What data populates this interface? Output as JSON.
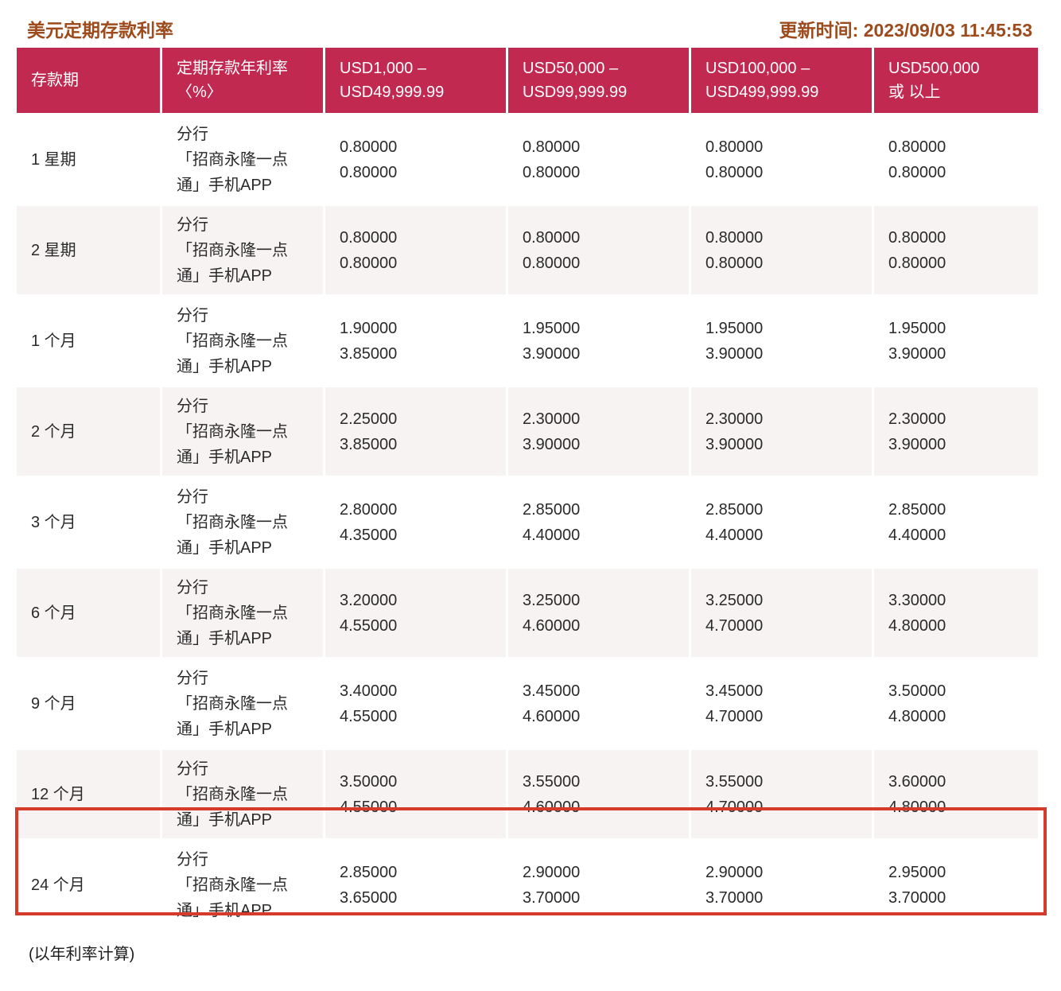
{
  "page": {
    "title": "美元定期存款利率",
    "updated": "更新时间: 2023/09/03 11:45:53",
    "footnote": "(以年利率计算)"
  },
  "colors": {
    "header_bg": "#c22950",
    "header_text": "#ffffff",
    "title_text": "#9d4a1c",
    "alt_row_bg": "#f7f3f2",
    "highlight_border": "#d53a2a"
  },
  "table": {
    "headers": [
      "存款期",
      "定期存款年利率\n〈%〉",
      "USD1,000 –\nUSD49,999.99",
      "USD50,000 –\nUSD99,999.99",
      "USD100,000 –\nUSD499,999.99",
      "USD500,000\n或 以上"
    ],
    "channel_label": "分行\n「招商永隆一点\n通」手机APP",
    "highlight_row_index": 7,
    "rows": [
      {
        "period": "1 星期",
        "rates": [
          [
            "0.80000",
            "0.80000"
          ],
          [
            "0.80000",
            "0.80000"
          ],
          [
            "0.80000",
            "0.80000"
          ],
          [
            "0.80000",
            "0.80000"
          ]
        ]
      },
      {
        "period": "2 星期",
        "rates": [
          [
            "0.80000",
            "0.80000"
          ],
          [
            "0.80000",
            "0.80000"
          ],
          [
            "0.80000",
            "0.80000"
          ],
          [
            "0.80000",
            "0.80000"
          ]
        ]
      },
      {
        "period": "1 个月",
        "rates": [
          [
            "1.90000",
            "3.85000"
          ],
          [
            "1.95000",
            "3.90000"
          ],
          [
            "1.95000",
            "3.90000"
          ],
          [
            "1.95000",
            "3.90000"
          ]
        ]
      },
      {
        "period": "2 个月",
        "rates": [
          [
            "2.25000",
            "3.85000"
          ],
          [
            "2.30000",
            "3.90000"
          ],
          [
            "2.30000",
            "3.90000"
          ],
          [
            "2.30000",
            "3.90000"
          ]
        ]
      },
      {
        "period": "3 个月",
        "rates": [
          [
            "2.80000",
            "4.35000"
          ],
          [
            "2.85000",
            "4.40000"
          ],
          [
            "2.85000",
            "4.40000"
          ],
          [
            "2.85000",
            "4.40000"
          ]
        ]
      },
      {
        "period": "6 个月",
        "rates": [
          [
            "3.20000",
            "4.55000"
          ],
          [
            "3.25000",
            "4.60000"
          ],
          [
            "3.25000",
            "4.70000"
          ],
          [
            "3.30000",
            "4.80000"
          ]
        ]
      },
      {
        "period": "9 个月",
        "rates": [
          [
            "3.40000",
            "4.55000"
          ],
          [
            "3.45000",
            "4.60000"
          ],
          [
            "3.45000",
            "4.70000"
          ],
          [
            "3.50000",
            "4.80000"
          ]
        ]
      },
      {
        "period": "12 个月",
        "rates": [
          [
            "3.50000",
            "4.55000"
          ],
          [
            "3.55000",
            "4.60000"
          ],
          [
            "3.55000",
            "4.70000"
          ],
          [
            "3.60000",
            "4.80000"
          ]
        ]
      },
      {
        "period": "24 个月",
        "rates": [
          [
            "2.85000",
            "3.65000"
          ],
          [
            "2.90000",
            "3.70000"
          ],
          [
            "2.90000",
            "3.70000"
          ],
          [
            "2.95000",
            "3.70000"
          ]
        ]
      }
    ]
  }
}
